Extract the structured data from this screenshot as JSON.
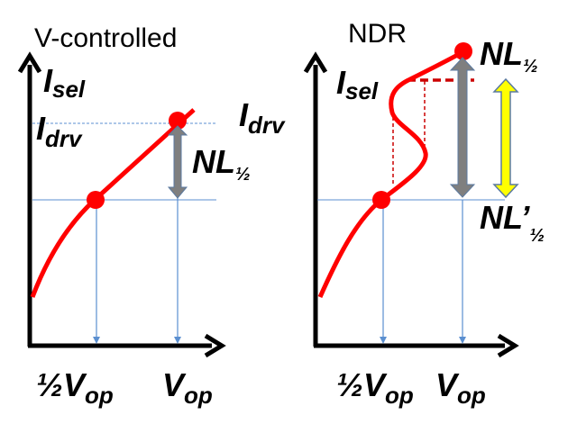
{
  "left_panel": {
    "title": "V-controlled",
    "y_label": {
      "main": "I",
      "sub": "sel"
    },
    "idrv_left": {
      "main": "I",
      "sub": "drv"
    },
    "idrv_right": {
      "main": "I",
      "sub": "drv"
    },
    "nl_label": {
      "main": "NL",
      "sub": "½"
    },
    "x_label_half": {
      "prefix": "½",
      "main": "V",
      "sub": "op"
    },
    "x_label_full": {
      "main": "V",
      "sub": "op"
    }
  },
  "right_panel": {
    "title": "NDR",
    "y_label": {
      "main": "I",
      "sub": "sel"
    },
    "nl_label": {
      "main": "NL",
      "sub": "½"
    },
    "nl_prime_label": {
      "main": "NL’",
      "sub": "½"
    },
    "x_label_half": {
      "prefix": "½",
      "main": "V",
      "sub": "op"
    },
    "x_label_full": {
      "main": "V",
      "sub": "op"
    }
  },
  "colors": {
    "curve": "#ff0000",
    "guide": "#5b8fd0",
    "nl_arrow": "#7f7f7f",
    "nl_prime_arrow": "#ffff00",
    "axis": "#000000"
  }
}
